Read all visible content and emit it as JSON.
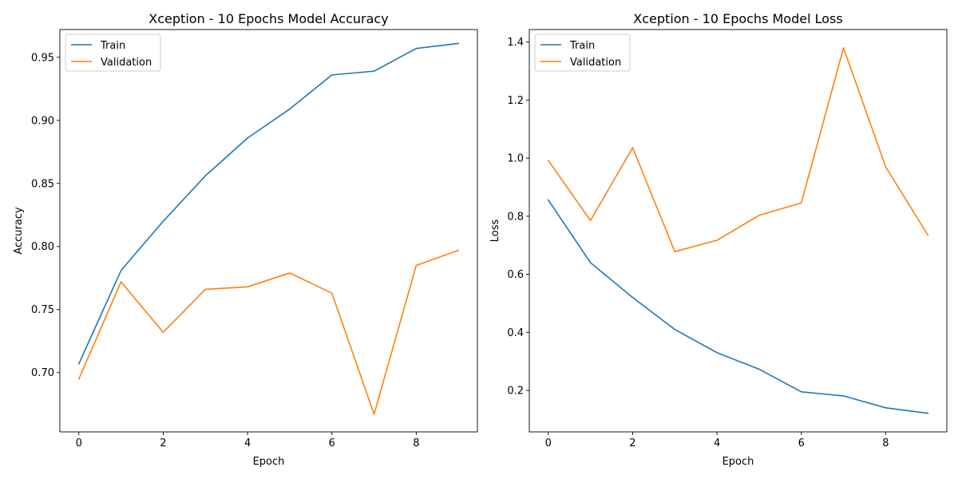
{
  "chart_data": [
    {
      "type": "line",
      "title": "Xception - 10 Epochs Model Accuracy",
      "xlabel": "Epoch",
      "ylabel": "Accuracy",
      "x": [
        0,
        1,
        2,
        3,
        4,
        5,
        6,
        7,
        8,
        9
      ],
      "xlim": [
        -0.45,
        9.45
      ],
      "ylim": [
        0.653,
        0.972
      ],
      "xticks": [
        0,
        2,
        4,
        6,
        8
      ],
      "yticks": [
        0.7,
        0.75,
        0.8,
        0.85,
        0.9,
        0.95
      ],
      "ytick_labels": [
        "0.70",
        "0.75",
        "0.80",
        "0.85",
        "0.90",
        "0.95"
      ],
      "grid": false,
      "legend_position": "upper-left",
      "series": [
        {
          "name": "Train",
          "color": "#1f77b4",
          "values": [
            0.707,
            0.781,
            0.82,
            0.856,
            0.886,
            0.909,
            0.936,
            0.939,
            0.957,
            0.961
          ]
        },
        {
          "name": "Validation",
          "color": "#ff7f0e",
          "values": [
            0.695,
            0.772,
            0.732,
            0.766,
            0.768,
            0.779,
            0.763,
            0.667,
            0.785,
            0.797
          ]
        }
      ]
    },
    {
      "type": "line",
      "title": "Xception - 10 Epochs Model Loss",
      "xlabel": "Epoch",
      "ylabel": "Loss",
      "x": [
        0,
        1,
        2,
        3,
        4,
        5,
        6,
        7,
        8,
        9
      ],
      "xlim": [
        -0.45,
        9.45
      ],
      "ylim": [
        0.057,
        1.443
      ],
      "xticks": [
        0,
        2,
        4,
        6,
        8
      ],
      "yticks": [
        0.2,
        0.4,
        0.6,
        0.8,
        1.0,
        1.2,
        1.4
      ],
      "ytick_labels": [
        "0.2",
        "0.4",
        "0.6",
        "0.8",
        "1.0",
        "1.2",
        "1.4"
      ],
      "grid": false,
      "legend_position": "upper-left",
      "series": [
        {
          "name": "Train",
          "color": "#1f77b4",
          "values": [
            0.856,
            0.64,
            0.52,
            0.41,
            0.33,
            0.273,
            0.195,
            0.181,
            0.14,
            0.121
          ]
        },
        {
          "name": "Validation",
          "color": "#ff7f0e",
          "values": [
            0.992,
            0.785,
            1.036,
            0.678,
            0.717,
            0.803,
            0.846,
            1.38,
            0.97,
            0.735
          ]
        }
      ]
    }
  ]
}
